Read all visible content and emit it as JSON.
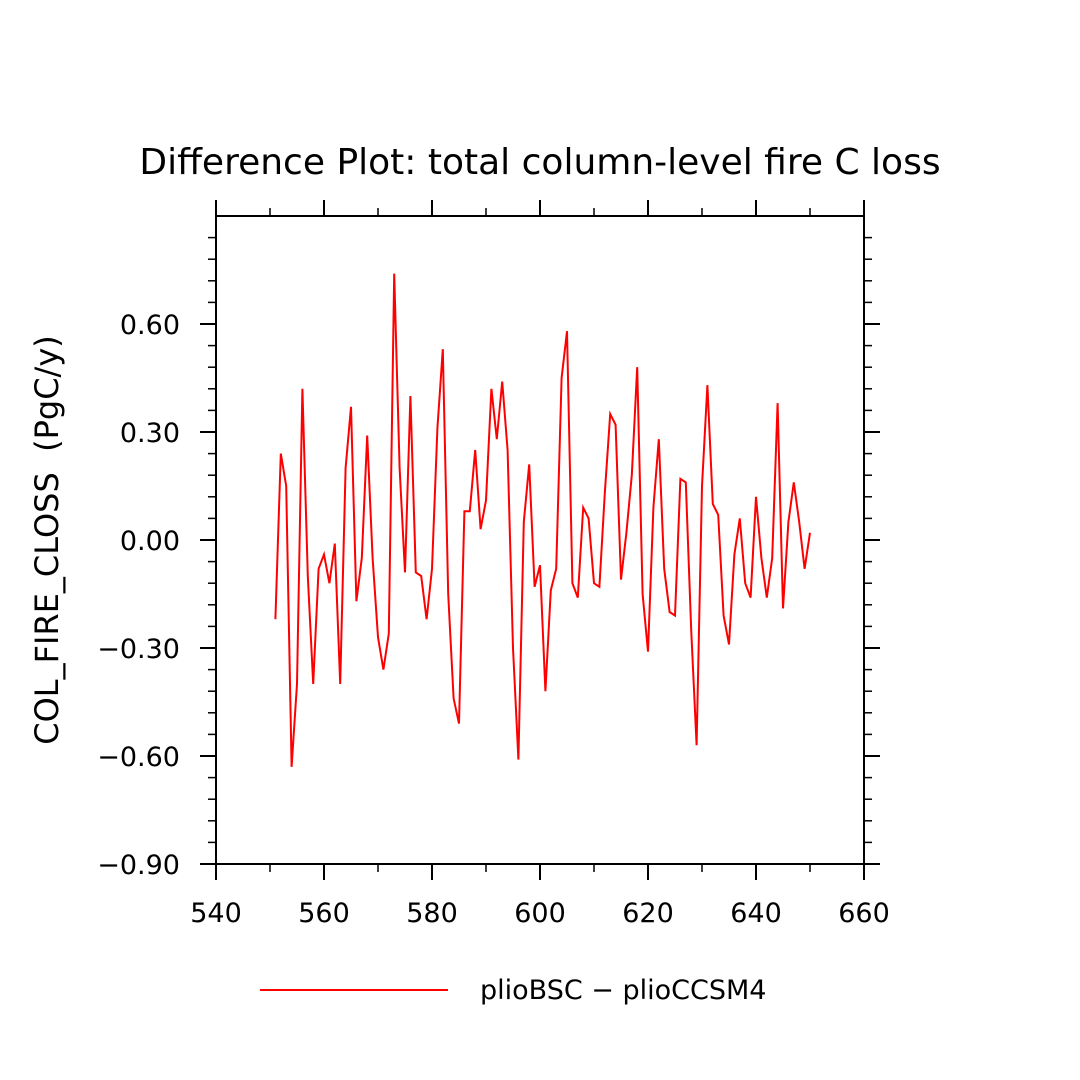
{
  "chart_data": {
    "type": "line",
    "title": "Difference Plot: total column-level fire C loss",
    "xlabel": "",
    "ylabel": "COL_FIRE_CLOSS  (PgC/y)",
    "xlim": [
      540,
      660
    ],
    "ylim": [
      -0.9,
      0.9
    ],
    "x_ticks": [
      540,
      560,
      580,
      600,
      620,
      640,
      660
    ],
    "x_tick_labels": [
      "540",
      "560",
      "580",
      "600",
      "620",
      "640",
      "660"
    ],
    "y_ticks": [
      -0.9,
      -0.6,
      -0.3,
      0.0,
      0.3,
      0.6
    ],
    "y_tick_labels": [
      "−0.90",
      "−0.60",
      "−0.30",
      "0.00",
      "0.30",
      "0.60"
    ],
    "grid": false,
    "legend_position": "bottom",
    "colors": {
      "series": "#ff0000",
      "axis": "#000000",
      "background": "#ffffff"
    },
    "series": [
      {
        "name": "plioBSC − plioCCSM4",
        "x": [
          551,
          552,
          553,
          554,
          555,
          556,
          557,
          558,
          559,
          560,
          561,
          562,
          563,
          564,
          565,
          566,
          567,
          568,
          569,
          570,
          571,
          572,
          573,
          574,
          575,
          576,
          577,
          578,
          579,
          580,
          581,
          582,
          583,
          584,
          585,
          586,
          587,
          588,
          589,
          590,
          591,
          592,
          593,
          594,
          595,
          596,
          597,
          598,
          599,
          600,
          601,
          602,
          603,
          604,
          605,
          606,
          607,
          608,
          609,
          610,
          611,
          612,
          613,
          614,
          615,
          616,
          617,
          618,
          619,
          620,
          621,
          622,
          623,
          624,
          625,
          626,
          627,
          628,
          629,
          630,
          631,
          632,
          633,
          634,
          635,
          636,
          637,
          638,
          639,
          640,
          641,
          642,
          643,
          644,
          645,
          646,
          647,
          648,
          649,
          650
        ],
        "values": [
          -0.22,
          0.24,
          0.15,
          -0.63,
          -0.4,
          0.42,
          -0.1,
          -0.4,
          -0.08,
          -0.04,
          -0.12,
          -0.01,
          -0.4,
          0.2,
          0.37,
          -0.17,
          -0.05,
          0.29,
          -0.05,
          -0.27,
          -0.36,
          -0.26,
          0.74,
          0.2,
          -0.09,
          0.4,
          -0.09,
          -0.1,
          -0.22,
          -0.08,
          0.31,
          0.53,
          -0.15,
          -0.44,
          -0.51,
          0.08,
          0.08,
          0.25,
          0.03,
          0.11,
          0.42,
          0.28,
          0.44,
          0.25,
          -0.3,
          -0.61,
          0.05,
          0.21,
          -0.13,
          -0.07,
          -0.42,
          -0.14,
          -0.08,
          0.45,
          0.58,
          -0.12,
          -0.16,
          0.09,
          0.06,
          -0.12,
          -0.13,
          0.13,
          0.35,
          0.32,
          -0.11,
          0.02,
          0.18,
          0.48,
          -0.15,
          -0.31,
          0.09,
          0.28,
          -0.08,
          -0.2,
          -0.21,
          0.17,
          0.16,
          -0.25,
          -0.57,
          0.15,
          0.43,
          0.1,
          0.07,
          -0.21,
          -0.29,
          -0.04,
          0.06,
          -0.12,
          -0.16,
          0.12,
          -0.05,
          -0.16,
          -0.05,
          0.38,
          -0.19,
          0.05,
          0.16,
          0.05,
          -0.08,
          0.02
        ]
      }
    ]
  }
}
